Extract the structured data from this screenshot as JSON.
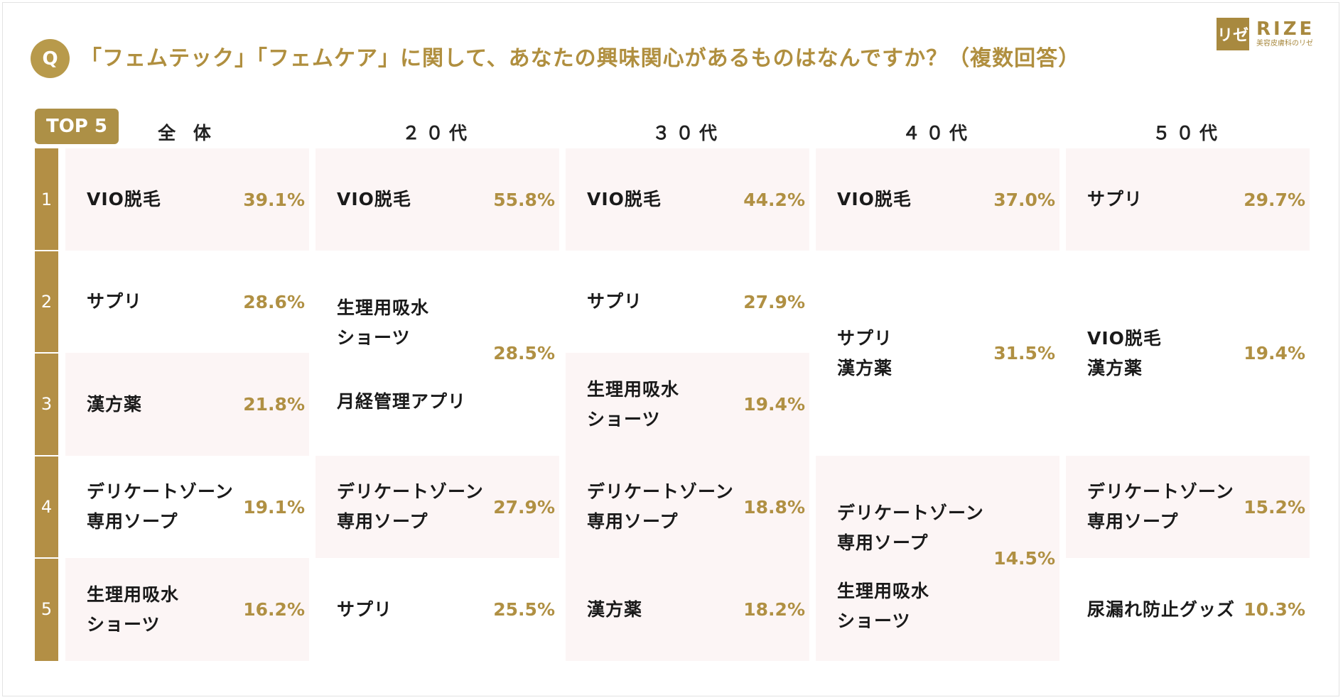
{
  "header": {
    "q_label": "Q",
    "title": "「フェムテック」「フェムケア」に関して、あなたの興味関心があるものはなんですか？（複数回答）"
  },
  "logo": {
    "mark": "リゼ",
    "name": "RIZE",
    "sub": "美容皮膚科のリゼ"
  },
  "tag": "TOP 5",
  "ranks": [
    "1",
    "2",
    "3",
    "4",
    "5"
  ],
  "colors": {
    "accent": "#b89a4b",
    "pink_row": "#fcf5f5",
    "percent": "#b09043"
  },
  "chart_data": {
    "type": "table",
    "columns": [
      {
        "header": "全 体",
        "rows": [
          {
            "item": "VIO脱毛",
            "value": "39.1%"
          },
          {
            "item": "サプリ",
            "value": "28.6%"
          },
          {
            "item": "漢方薬",
            "value": "21.8%"
          },
          {
            "item": "デリケートゾーン\n専用ソープ",
            "value": "19.1%"
          },
          {
            "item": "生理用吸水\nショーツ",
            "value": "16.2%"
          }
        ]
      },
      {
        "header": "２０代",
        "rows": [
          {
            "item": "VIO脱毛",
            "value": "55.8%"
          },
          {
            "item": "生理用吸水\nショーツ",
            "value": "28.5%"
          },
          {
            "item": "月経管理アプリ",
            "value": "28.5%"
          },
          {
            "item": "デリケートゾーン\n専用ソープ",
            "value": "27.9%"
          },
          {
            "item": "サプリ",
            "value": "25.5%"
          }
        ]
      },
      {
        "header": "３０代",
        "rows": [
          {
            "item": "VIO脱毛",
            "value": "44.2%"
          },
          {
            "item": "サプリ",
            "value": "27.9%"
          },
          {
            "item": "生理用吸水\nショーツ",
            "value": "19.4%"
          },
          {
            "item": "デリケートゾーン\n専用ソープ",
            "value": "18.8%"
          },
          {
            "item": "漢方薬",
            "value": "18.2%"
          }
        ]
      },
      {
        "header": "４０代",
        "rows": [
          {
            "item": "VIO脱毛",
            "value": "37.0%"
          },
          {
            "item": "サプリ\n漢方薬",
            "value": "31.5%"
          },
          {
            "item": "デリケートゾーン\n専用ソープ",
            "value": "14.5%"
          },
          {
            "item": "生理用吸水\nショーツ",
            "value": "14.5%"
          }
        ]
      },
      {
        "header": "５０代",
        "rows": [
          {
            "item": "サプリ",
            "value": "29.7%"
          },
          {
            "item": "VIO脱毛\n漢方薬",
            "value": "19.4%"
          },
          {
            "item": "デリケートゾーン\n専用ソープ",
            "value": "15.2%"
          },
          {
            "item": "尿漏れ防止グッズ",
            "value": "10.3%"
          }
        ]
      }
    ]
  }
}
